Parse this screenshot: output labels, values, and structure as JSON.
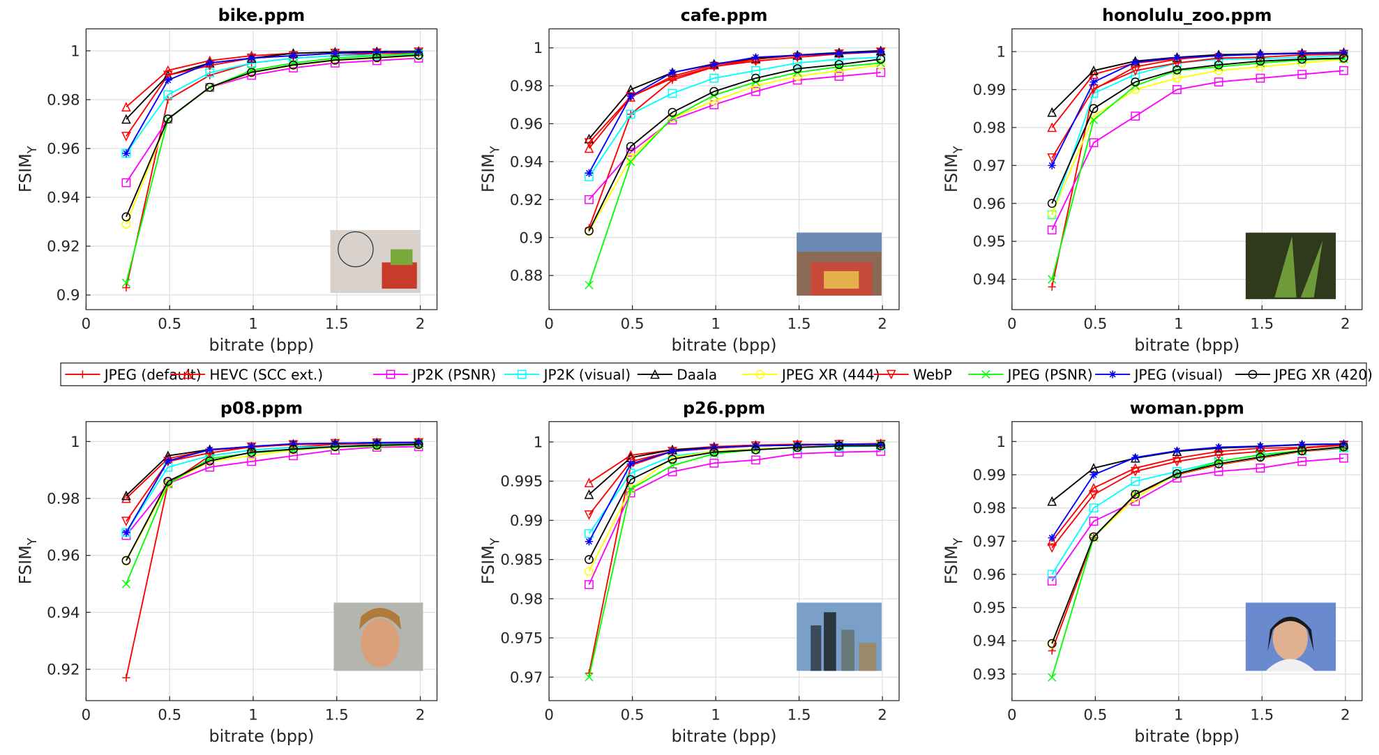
{
  "legend": {
    "entries": [
      {
        "name": "JPEG (default)",
        "color": "#ff0000",
        "marker": "+"
      },
      {
        "name": "HEVC (SCC ext.)",
        "color": "#ff0000",
        "marker": "^"
      },
      {
        "name": "JP2K (PSNR)",
        "color": "#ff00ff",
        "marker": "s"
      },
      {
        "name": "JP2K (visual)",
        "color": "#00ffff",
        "marker": "s"
      },
      {
        "name": "Daala",
        "color": "#000000",
        "marker": "^"
      },
      {
        "name": "JPEG XR (444)",
        "color": "#ffff00",
        "marker": "o"
      },
      {
        "name": "WebP",
        "color": "#ff0000",
        "marker": "v"
      },
      {
        "name": "JPEG (PSNR)",
        "color": "#00ff00",
        "marker": "x"
      },
      {
        "name": "JPEG (visual)",
        "color": "#0000ff",
        "marker": "*"
      },
      {
        "name": "JPEG XR (420)",
        "color": "#000000",
        "marker": "o"
      }
    ]
  },
  "chart_data": [
    {
      "type": "line",
      "title": "bike.ppm",
      "xlabel": "bitrate (bpp)",
      "ylabel": "FSIM",
      "ylabel_sub": "Y",
      "grid": true,
      "xlim": [
        0,
        2.1
      ],
      "xticks": [
        0,
        0.5,
        1,
        1.5,
        2
      ],
      "ylim": [
        0.894,
        1.009
      ],
      "yticks": [
        0.9,
        0.92,
        0.94,
        0.96,
        0.98,
        1
      ],
      "x": [
        0.24,
        0.49,
        0.74,
        0.99,
        1.24,
        1.49,
        1.74,
        1.99
      ],
      "series": [
        {
          "values": [
            0.903,
            0.98,
            0.99,
            0.995,
            0.997,
            0.998,
            0.999,
            0.999
          ]
        },
        {
          "values": [
            0.977,
            0.992,
            0.996,
            0.998,
            0.999,
            0.9995,
            0.9997,
            0.9998
          ]
        },
        {
          "values": [
            0.946,
            0.972,
            0.985,
            0.99,
            0.993,
            0.995,
            0.996,
            0.997
          ]
        },
        {
          "values": [
            0.958,
            0.982,
            0.991,
            0.995,
            0.997,
            0.998,
            0.9982,
            0.9985
          ]
        },
        {
          "values": [
            0.972,
            0.99,
            0.995,
            0.997,
            0.999,
            0.9995,
            0.9997,
            0.9998
          ]
        },
        {
          "values": [
            0.929,
            0.972,
            0.985,
            0.991,
            0.994,
            0.996,
            0.997,
            0.998
          ]
        },
        {
          "values": [
            0.965,
            0.99,
            0.994,
            0.997,
            0.998,
            0.999,
            0.9992,
            0.9995
          ]
        },
        {
          "values": [
            0.905,
            0.972,
            0.985,
            0.992,
            0.995,
            0.997,
            0.998,
            0.999
          ]
        },
        {
          "values": [
            0.958,
            0.988,
            0.995,
            0.997,
            0.998,
            0.999,
            0.9994,
            0.9996
          ]
        },
        {
          "values": [
            0.932,
            0.9721,
            0.9851,
            0.9912,
            0.9942,
            0.9962,
            0.9972,
            0.9982
          ]
        }
      ]
    },
    {
      "type": "line",
      "title": "cafe.ppm",
      "xlabel": "bitrate (bpp)",
      "ylabel": "FSIM",
      "ylabel_sub": "Y",
      "grid": true,
      "xlim": [
        0,
        2.1
      ],
      "xticks": [
        0,
        0.5,
        1,
        1.5,
        2
      ],
      "ylim": [
        0.862,
        1.01
      ],
      "yticks": [
        0.88,
        0.9,
        0.92,
        0.94,
        0.96,
        0.98,
        1
      ],
      "x": [
        0.24,
        0.49,
        0.74,
        0.99,
        1.24,
        1.49,
        1.74,
        1.99
      ],
      "series": [
        {
          "values": [
            0.905,
            0.965,
            0.983,
            0.99,
            0.994,
            0.996,
            0.997,
            0.998
          ]
        },
        {
          "values": [
            0.947,
            0.974,
            0.985,
            0.991,
            0.994,
            0.996,
            0.9972,
            0.9982
          ]
        },
        {
          "values": [
            0.92,
            0.945,
            0.962,
            0.97,
            0.977,
            0.983,
            0.985,
            0.987
          ]
        },
        {
          "values": [
            0.932,
            0.965,
            0.976,
            0.984,
            0.988,
            0.992,
            0.994,
            0.995
          ]
        },
        {
          "values": [
            0.952,
            0.978,
            0.987,
            0.9915,
            0.9945,
            0.9962,
            0.9975,
            0.9985
          ]
        },
        {
          "values": [
            0.9032,
            0.942,
            0.963,
            0.972,
            0.98,
            0.985,
            0.988,
            0.991
          ]
        },
        {
          "values": [
            0.95,
            0.9742,
            0.984,
            0.9902,
            0.993,
            0.995,
            0.9968,
            0.9978
          ]
        },
        {
          "values": [
            0.875,
            0.94,
            0.9632,
            0.975,
            0.982,
            0.987,
            0.99,
            0.992
          ]
        },
        {
          "values": [
            0.934,
            0.9745,
            0.987,
            0.9912,
            0.995,
            0.9961,
            0.9971,
            0.9981
          ]
        },
        {
          "values": [
            0.9035,
            0.948,
            0.966,
            0.977,
            0.984,
            0.989,
            0.9912,
            0.994
          ]
        }
      ]
    },
    {
      "type": "line",
      "title": "honolulu_zoo.ppm",
      "xlabel": "bitrate (bpp)",
      "ylabel": "FSIM",
      "ylabel_sub": "Y",
      "grid": true,
      "xlim": [
        0,
        2.1
      ],
      "xticks": [
        0,
        0.5,
        1,
        1.5,
        2
      ],
      "ylim": [
        0.932,
        1.006
      ],
      "yticks": [
        0.94,
        0.95,
        0.96,
        0.97,
        0.98,
        0.99,
        1
      ],
      "x": [
        0.24,
        0.49,
        0.74,
        0.99,
        1.24,
        1.49,
        1.74,
        1.99
      ],
      "series": [
        {
          "values": [
            0.938,
            0.99,
            0.996,
            0.998,
            0.999,
            0.9993,
            0.9995,
            0.9996
          ]
        },
        {
          "values": [
            0.98,
            0.994,
            0.997,
            0.9982,
            0.9991,
            0.9994,
            0.9996,
            0.9997
          ]
        },
        {
          "values": [
            0.953,
            0.976,
            0.983,
            0.99,
            0.992,
            0.993,
            0.994,
            0.995
          ]
        },
        {
          "values": [
            0.957,
            0.989,
            0.994,
            0.997,
            0.998,
            0.9981,
            0.9985,
            0.999
          ]
        },
        {
          "values": [
            0.984,
            0.995,
            0.9975,
            0.9985,
            0.9992,
            0.9994,
            0.9996,
            0.9998
          ]
        },
        {
          "values": [
            0.9572,
            0.983,
            0.99,
            0.993,
            0.995,
            0.996,
            0.997,
            0.998
          ]
        },
        {
          "values": [
            0.972,
            0.9902,
            0.995,
            0.997,
            0.9983,
            0.9985,
            0.9991,
            0.9993
          ]
        },
        {
          "values": [
            0.94,
            0.982,
            0.991,
            0.995,
            0.996,
            0.997,
            0.9978,
            0.9981
          ]
        },
        {
          "values": [
            0.97,
            0.992,
            0.9972,
            0.9984,
            0.9989,
            0.9993,
            0.9995,
            0.9997
          ]
        },
        {
          "values": [
            0.96,
            0.985,
            0.992,
            0.9952,
            0.9965,
            0.9975,
            0.998,
            0.9983
          ]
        }
      ]
    },
    {
      "type": "line",
      "title": "p08.ppm",
      "xlabel": "bitrate (bpp)",
      "ylabel": "FSIM",
      "ylabel_sub": "Y",
      "grid": true,
      "xlim": [
        0,
        2.1
      ],
      "xticks": [
        0,
        0.5,
        1,
        1.5,
        2
      ],
      "ylim": [
        0.909,
        1.007
      ],
      "yticks": [
        0.92,
        0.94,
        0.96,
        0.98,
        1
      ],
      "x": [
        0.24,
        0.49,
        0.74,
        0.99,
        1.24,
        1.49,
        1.74,
        1.99
      ],
      "series": [
        {
          "values": [
            0.917,
            0.985,
            0.995,
            0.997,
            0.998,
            0.999,
            0.9993,
            0.9995
          ]
        },
        {
          "values": [
            0.98,
            0.994,
            0.997,
            0.998,
            0.999,
            0.9993,
            0.9995,
            0.9996
          ]
        },
        {
          "values": [
            0.967,
            0.9852,
            0.991,
            0.993,
            0.995,
            0.997,
            0.998,
            0.9982
          ]
        },
        {
          "values": [
            0.968,
            0.991,
            0.995,
            0.997,
            0.998,
            0.9982,
            0.999,
            0.9991
          ]
        },
        {
          "values": [
            0.981,
            0.995,
            0.9972,
            0.9982,
            0.9991,
            0.9994,
            0.9996,
            0.9997
          ]
        },
        {
          "values": [
            0.958,
            0.9851,
            0.993,
            0.995,
            0.997,
            0.998,
            0.9983,
            0.9988
          ]
        },
        {
          "values": [
            0.972,
            0.993,
            0.996,
            0.9981,
            0.9989,
            0.9993,
            0.9995,
            0.9996
          ]
        },
        {
          "values": [
            0.95,
            0.985,
            0.994,
            0.996,
            0.9972,
            0.9981,
            0.9984,
            0.9989
          ]
        },
        {
          "values": [
            0.968,
            0.9932,
            0.9971,
            0.9983,
            0.9992,
            0.9994,
            0.9996,
            0.9997
          ]
        },
        {
          "values": [
            0.9582,
            0.986,
            0.9932,
            0.9962,
            0.9973,
            0.9982,
            0.9987,
            0.999
          ]
        }
      ]
    },
    {
      "type": "line",
      "title": "p26.ppm",
      "xlabel": "bitrate (bpp)",
      "ylabel": "FSIM",
      "ylabel_sub": "Y",
      "grid": true,
      "xlim": [
        0,
        2.1
      ],
      "xticks": [
        0,
        0.5,
        1,
        1.5,
        2
      ],
      "ylim": [
        0.967,
        1.0026
      ],
      "yticks": [
        0.97,
        0.975,
        0.98,
        0.985,
        0.99,
        0.995,
        1
      ],
      "x": [
        0.24,
        0.49,
        0.74,
        0.99,
        1.24,
        1.49,
        1.74,
        1.99
      ],
      "series": [
        {
          "values": [
            0.9705,
            0.997,
            0.9988,
            0.9992,
            0.9995,
            0.9996,
            0.9997,
            0.9997
          ]
        },
        {
          "values": [
            0.9948,
            0.9983,
            0.999,
            0.9994,
            0.9996,
            0.9997,
            0.9997,
            0.9998
          ]
        },
        {
          "values": [
            0.9818,
            0.9935,
            0.9962,
            0.9973,
            0.9977,
            0.9985,
            0.9987,
            0.9988
          ]
        },
        {
          "values": [
            0.9883,
            0.996,
            0.9982,
            0.9988,
            0.9991,
            0.9993,
            0.9994,
            0.9995
          ]
        },
        {
          "values": [
            0.9933,
            0.998,
            0.999,
            0.9993,
            0.9995,
            0.9996,
            0.9997,
            0.9997
          ]
        },
        {
          "values": [
            0.9835,
            0.994,
            0.998,
            0.9988,
            0.9991,
            0.9993,
            0.9995,
            0.9996
          ]
        },
        {
          "values": [
            0.9907,
            0.9975,
            0.9988,
            0.9992,
            0.9995,
            0.9996,
            0.9997,
            0.9997
          ]
        },
        {
          "values": [
            0.97,
            0.994,
            0.997,
            0.9985,
            0.999,
            0.9993,
            0.9995,
            0.9996
          ]
        },
        {
          "values": [
            0.9873,
            0.9972,
            0.9988,
            0.9993,
            0.9995,
            0.9996,
            0.9997,
            0.9997
          ]
        },
        {
          "values": [
            0.985,
            0.9952,
            0.9978,
            0.9987,
            0.999,
            0.9993,
            0.9995,
            0.9995
          ]
        }
      ]
    },
    {
      "type": "line",
      "title": "woman.ppm",
      "xlabel": "bitrate (bpp)",
      "ylabel": "FSIM",
      "ylabel_sub": "Y",
      "grid": true,
      "xlim": [
        0,
        2.1
      ],
      "xticks": [
        0,
        0.5,
        1,
        1.5,
        2
      ],
      "ylim": [
        0.922,
        1.006
      ],
      "yticks": [
        0.93,
        0.94,
        0.95,
        0.96,
        0.97,
        0.98,
        0.99,
        1
      ],
      "x": [
        0.24,
        0.49,
        0.74,
        0.99,
        1.24,
        1.49,
        1.74,
        1.99
      ],
      "series": [
        {
          "values": [
            0.937,
            0.971,
            0.984,
            0.99,
            0.993,
            0.995,
            0.997,
            0.998
          ]
        },
        {
          "values": [
            0.97,
            0.986,
            0.992,
            0.995,
            0.997,
            0.998,
            0.9982,
            0.999
          ]
        },
        {
          "values": [
            0.958,
            0.976,
            0.982,
            0.989,
            0.991,
            0.992,
            0.994,
            0.995
          ]
        },
        {
          "values": [
            0.96,
            0.98,
            0.988,
            0.991,
            0.994,
            0.996,
            0.9972,
            0.9981
          ]
        },
        {
          "values": [
            0.982,
            0.992,
            0.995,
            0.997,
            0.998,
            0.9985,
            0.999,
            0.9992
          ]
        },
        {
          "values": [
            0.939,
            0.9712,
            0.983,
            0.9902,
            0.9932,
            0.9952,
            0.9971,
            0.9983
          ]
        },
        {
          "values": [
            0.968,
            0.984,
            0.991,
            0.994,
            0.996,
            0.997,
            0.998,
            0.9989
          ]
        },
        {
          "values": [
            0.929,
            0.9711,
            0.9842,
            0.9901,
            0.994,
            0.996,
            0.9973,
            0.9982
          ]
        },
        {
          "values": [
            0.971,
            0.99,
            0.9952,
            0.9972,
            0.9983,
            0.9986,
            0.9991,
            0.9993
          ]
        },
        {
          "values": [
            0.9392,
            0.9713,
            0.9841,
            0.9903,
            0.9933,
            0.9953,
            0.9972,
            0.9984
          ]
        }
      ]
    }
  ]
}
